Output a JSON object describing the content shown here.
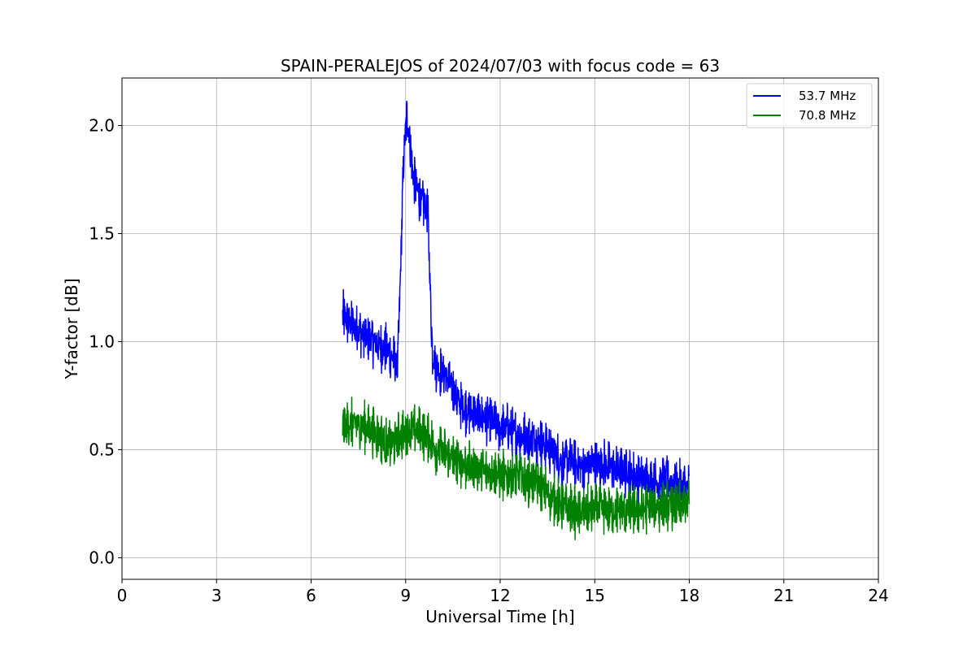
{
  "chart_data": {
    "type": "line",
    "title": "SPAIN-PERALEJOS of 2024/07/03 with focus code = 63",
    "xlabel": "Universal Time [h]",
    "ylabel": "Y-factor [dB]",
    "xlim": [
      0,
      24
    ],
    "ylim": [
      -0.1,
      2.22
    ],
    "xticks": [
      0,
      3,
      6,
      9,
      12,
      15,
      18,
      21,
      24
    ],
    "xtick_labels": [
      "0",
      "3",
      "6",
      "9",
      "12",
      "15",
      "18",
      "21",
      "24"
    ],
    "yticks": [
      0.0,
      0.5,
      1.0,
      1.5,
      2.0
    ],
    "ytick_labels": [
      "0.0",
      "0.5",
      "1.0",
      "1.5",
      "2.0"
    ],
    "grid": true,
    "legend": "top-right",
    "series": [
      {
        "name": "53.7 MHz",
        "color": "#0000ff",
        "x": [
          7.0,
          7.25,
          7.5,
          7.75,
          8.0,
          8.25,
          8.5,
          8.75,
          8.95,
          9.05,
          9.25,
          9.5,
          9.7,
          9.85,
          10.0,
          10.25,
          10.5,
          10.75,
          11.0,
          11.25,
          11.5,
          11.75,
          12.0,
          12.25,
          12.5,
          12.75,
          13.0,
          13.25,
          13.5,
          13.75,
          14.0,
          14.25,
          14.5,
          14.75,
          15.0,
          15.25,
          15.5,
          15.75,
          16.0,
          16.25,
          16.5,
          16.75,
          17.0,
          17.25,
          17.5,
          17.75,
          18.0
        ],
        "y": [
          1.12,
          1.08,
          1.05,
          1.02,
          1.0,
          0.98,
          0.95,
          0.88,
          1.9,
          2.05,
          1.75,
          1.65,
          1.6,
          0.95,
          0.88,
          0.85,
          0.78,
          0.7,
          0.68,
          0.66,
          0.65,
          0.63,
          0.6,
          0.6,
          0.58,
          0.56,
          0.55,
          0.54,
          0.52,
          0.48,
          0.44,
          0.45,
          0.42,
          0.42,
          0.44,
          0.43,
          0.42,
          0.4,
          0.4,
          0.38,
          0.37,
          0.35,
          0.35,
          0.36,
          0.34,
          0.33,
          0.32
        ]
      },
      {
        "name": "70.8 MHz",
        "color": "#008000",
        "x": [
          7.0,
          7.25,
          7.5,
          7.75,
          8.0,
          8.25,
          8.5,
          8.75,
          9.0,
          9.25,
          9.5,
          9.75,
          10.0,
          10.25,
          10.5,
          10.75,
          11.0,
          11.25,
          11.5,
          11.75,
          12.0,
          12.25,
          12.5,
          12.75,
          13.0,
          13.25,
          13.5,
          13.75,
          14.0,
          14.25,
          14.5,
          14.75,
          15.0,
          15.25,
          15.5,
          15.75,
          16.0,
          16.25,
          16.5,
          16.75,
          17.0,
          17.25,
          17.5,
          17.75,
          18.0
        ],
        "y": [
          0.6,
          0.62,
          0.62,
          0.6,
          0.58,
          0.55,
          0.52,
          0.55,
          0.58,
          0.6,
          0.58,
          0.55,
          0.5,
          0.48,
          0.46,
          0.44,
          0.42,
          0.42,
          0.4,
          0.4,
          0.38,
          0.38,
          0.38,
          0.36,
          0.36,
          0.34,
          0.3,
          0.26,
          0.24,
          0.22,
          0.2,
          0.22,
          0.22,
          0.22,
          0.22,
          0.22,
          0.22,
          0.22,
          0.22,
          0.24,
          0.24,
          0.24,
          0.24,
          0.24,
          0.25
        ]
      }
    ]
  }
}
